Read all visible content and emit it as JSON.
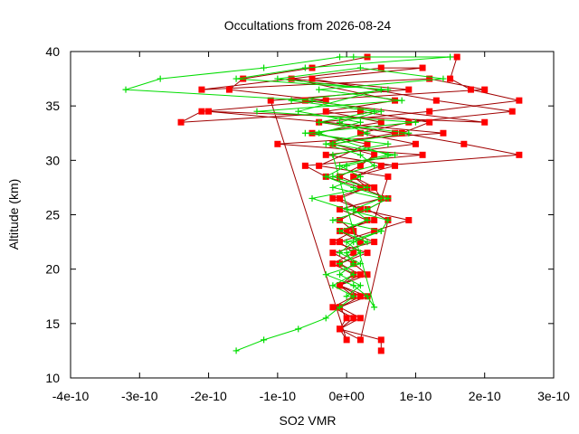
{
  "chart_data": {
    "type": "scatter",
    "title": "Occultations from 2026-08-24",
    "xlabel": "SO2 VMR",
    "ylabel": "Altitude (km)",
    "xlim": [
      -4e-10,
      3e-10
    ],
    "ylim": [
      10,
      40
    ],
    "x_ticks": [
      "-4e-10",
      "-3e-10",
      "-2e-10",
      "-1e-10",
      "0e+00",
      "1e-10",
      "2e-10",
      "3e-10"
    ],
    "y_ticks": [
      "10",
      "15",
      "20",
      "25",
      "30",
      "35",
      "40"
    ],
    "grid": false,
    "legend": "none",
    "series": [
      {
        "color": "#ff0000",
        "line_color": "#a00000",
        "marker": "square",
        "points": [
          [
            5e-11,
            12.5
          ],
          [
            5e-11,
            13.5
          ],
          [
            -1e-11,
            14.5
          ],
          [
            2e-11,
            15.5
          ],
          [
            -1e-11,
            16.5
          ],
          [
            3e-11,
            17.5
          ],
          [
            -1e-11,
            18.5
          ],
          [
            1e-11,
            19.5
          ],
          [
            -2e-11,
            20.5
          ],
          [
            1e-11,
            21.5
          ],
          [
            -1e-11,
            22.5
          ],
          [
            4e-11,
            23.5
          ],
          [
            9e-11,
            24.5
          ],
          [
            2e-11,
            25.5
          ],
          [
            -1e-11,
            26.5
          ],
          [
            3e-11,
            27.5
          ],
          [
            1e-11,
            28.5
          ],
          [
            5e-11,
            29.5
          ],
          [
            2.5e-10,
            30.5
          ],
          [
            1.7e-10,
            31.5
          ],
          [
            8e-11,
            32.5
          ],
          [
            1.2e-10,
            33.5
          ],
          [
            2e-11,
            34.5
          ],
          [
            -2.4e-10,
            33.5
          ],
          [
            -2.1e-10,
            34.5
          ],
          [
            -3e-11,
            35.5
          ],
          [
            -1.7e-10,
            36.5
          ],
          [
            -1.5e-10,
            37.5
          ],
          [
            -5e-11,
            38.5
          ],
          [
            3e-11,
            39.5
          ],
          [
            1.6e-10,
            39.5
          ],
          [
            1.5e-10,
            37.5
          ],
          [
            1.8e-10,
            36.5
          ],
          [
            2.5e-10,
            35.5
          ],
          [
            1.2e-10,
            34.5
          ],
          [
            -4e-11,
            33.5
          ],
          [
            7e-11,
            32.5
          ],
          [
            -2e-11,
            31.5
          ],
          [
            4e-11,
            30.5
          ],
          [
            2e-11,
            29.5
          ],
          [
            -1e-11,
            28.5
          ],
          [
            3e-11,
            27.5
          ],
          [
            -2e-11,
            26.5
          ],
          [
            2e-11,
            25.5
          ],
          [
            -1e-11,
            24.5
          ],
          [
            1e-11,
            23.5
          ],
          [
            -2e-11,
            22.5
          ],
          [
            3e-11,
            21.5
          ],
          [
            -1e-11,
            20.5
          ],
          [
            2e-11,
            19.5
          ],
          [
            -1e-11,
            18.5
          ],
          [
            1e-11,
            17.5
          ],
          [
            -2e-11,
            16.5
          ],
          [
            1e-11,
            15.5
          ],
          [
            -1e-11,
            14.5
          ],
          [
            2e-11,
            13.5
          ],
          [
            6e-11,
            24.5
          ],
          [
            3e-11,
            25.5
          ],
          [
            6e-11,
            26.5
          ],
          [
            2e-11,
            27.5
          ],
          [
            -3e-11,
            28.5
          ],
          [
            -6e-11,
            29.5
          ],
          [
            1.1e-10,
            30.5
          ],
          [
            -1e-10,
            31.5
          ],
          [
            1.4e-10,
            32.5
          ],
          [
            -2e-10,
            34.5
          ],
          [
            2e-10,
            33.5
          ],
          [
            -6e-11,
            35.5
          ],
          [
            2e-10,
            36.5
          ],
          [
            1.2e-10,
            37.5
          ],
          [
            -2.1e-10,
            36.5
          ],
          [
            5e-11,
            38.5
          ],
          [
            1.1e-10,
            38.5
          ],
          [
            -5e-11,
            37.5
          ],
          [
            1.3e-10,
            35.5
          ],
          [
            2.4e-10,
            34.5
          ],
          [
            9e-11,
            33.5
          ],
          [
            2e-11,
            32.5
          ],
          [
            1e-10,
            31.5
          ],
          [
            -3e-11,
            30.5
          ],
          [
            7e-11,
            29.5
          ],
          [
            1e-11,
            28.5
          ],
          [
            4e-11,
            27.5
          ],
          [
            5e-11,
            26.5
          ],
          [
            -1e-11,
            25.5
          ],
          [
            3e-11,
            24.5
          ],
          [
            0.0,
            23.5
          ],
          [
            4e-11,
            22.5
          ],
          [
            -2e-11,
            21.5
          ],
          [
            1e-11,
            20.5
          ],
          [
            3e-11,
            19.5
          ],
          [
            -1e-11,
            18.5
          ],
          [
            2e-11,
            17.5
          ],
          [
            -1e-11,
            16.5
          ],
          [
            0.0,
            15.5
          ],
          [
            -1e-11,
            14.5
          ],
          [
            0.0,
            13.5
          ],
          [
            -1.1e-10,
            35.5
          ],
          [
            9e-11,
            36.5
          ],
          [
            -8e-11,
            37.5
          ],
          [
            7e-11,
            35.5
          ],
          [
            -3e-11,
            34.5
          ],
          [
            5e-11,
            33.5
          ],
          [
            -5e-11,
            32.5
          ],
          [
            3e-11,
            31.5
          ],
          [
            -4e-11,
            29.5
          ],
          [
            6e-11,
            28.5
          ],
          [
            4e-11,
            24.5
          ],
          [
            -1e-11,
            23.5
          ],
          [
            2e-11,
            22.5
          ]
        ]
      },
      {
        "color": "#00dd00",
        "line_color": "#00dd00",
        "marker": "plus",
        "points": [
          [
            -1.6e-10,
            12.5
          ],
          [
            -1.2e-10,
            13.5
          ],
          [
            -7e-11,
            14.5
          ],
          [
            -3e-11,
            15.5
          ],
          [
            -1e-11,
            16.5
          ],
          [
            1e-11,
            17.5
          ],
          [
            -2e-11,
            18.5
          ],
          [
            1e-11,
            19.5
          ],
          [
            -1e-11,
            20.5
          ],
          [
            2e-11,
            21.5
          ],
          [
            0.0,
            22.5
          ],
          [
            5e-11,
            23.5
          ],
          [
            6e-11,
            24.5
          ],
          [
            0.0,
            25.5
          ],
          [
            -5e-11,
            26.5
          ],
          [
            3e-11,
            27.5
          ],
          [
            -2e-11,
            28.5
          ],
          [
            4e-11,
            29.5
          ],
          [
            2e-11,
            30.5
          ],
          [
            -3e-11,
            31.5
          ],
          [
            3e-11,
            32.5
          ],
          [
            -1e-11,
            33.5
          ],
          [
            5e-11,
            34.5
          ],
          [
            -5e-11,
            35.5
          ],
          [
            -3.2e-10,
            36.5
          ],
          [
            -2.7e-10,
            37.5
          ],
          [
            -1.2e-10,
            38.5
          ],
          [
            -1e-11,
            39.5
          ],
          [
            1e-11,
            39.5
          ],
          [
            1.5e-10,
            39.5
          ],
          [
            -6e-11,
            38.5
          ],
          [
            -1.6e-10,
            37.5
          ],
          [
            6e-11,
            36.5
          ],
          [
            -8e-11,
            35.5
          ],
          [
            4e-11,
            34.5
          ],
          [
            -4e-11,
            33.5
          ],
          [
            9e-11,
            32.5
          ],
          [
            -2e-11,
            31.5
          ],
          [
            7e-11,
            30.5
          ],
          [
            0.0,
            29.5
          ],
          [
            -3e-11,
            28.5
          ],
          [
            1e-11,
            27.5
          ],
          [
            6e-11,
            26.5
          ],
          [
            3e-11,
            25.5
          ],
          [
            -2e-11,
            24.5
          ],
          [
            5e-11,
            23.5
          ],
          [
            1e-11,
            22.5
          ],
          [
            -1e-11,
            21.5
          ],
          [
            2e-11,
            20.5
          ],
          [
            -3e-11,
            19.5
          ],
          [
            1e-11,
            18.5
          ],
          [
            3e-11,
            17.5
          ],
          [
            4e-11,
            16.5
          ],
          [
            -2e-11,
            30.5
          ],
          [
            6e-11,
            31.5
          ],
          [
            -6e-11,
            32.5
          ],
          [
            1e-10,
            33.5
          ],
          [
            -1.3e-10,
            34.5
          ],
          [
            8e-11,
            35.5
          ],
          [
            -4e-11,
            36.5
          ],
          [
            1.4e-10,
            37.5
          ],
          [
            2e-11,
            38.5
          ],
          [
            -1e-10,
            37.5
          ],
          [
            5e-11,
            36.5
          ],
          [
            -7e-11,
            34.5
          ],
          [
            2e-11,
            33.5
          ],
          [
            -4e-11,
            32.5
          ],
          [
            6e-11,
            30.5
          ],
          [
            -1e-11,
            29.5
          ],
          [
            2e-11,
            28.5
          ],
          [
            -2e-11,
            27.5
          ],
          [
            5e-11,
            26.5
          ],
          [
            1e-11,
            25.5
          ],
          [
            3e-11,
            24.5
          ],
          [
            -1e-11,
            23.5
          ],
          [
            3e-11,
            22.5
          ],
          [
            0.0,
            21.5
          ],
          [
            1e-11,
            20.5
          ],
          [
            -1e-11,
            19.5
          ],
          [
            2e-11,
            18.5
          ],
          [
            0.0,
            17.5
          ]
        ]
      }
    ]
  }
}
